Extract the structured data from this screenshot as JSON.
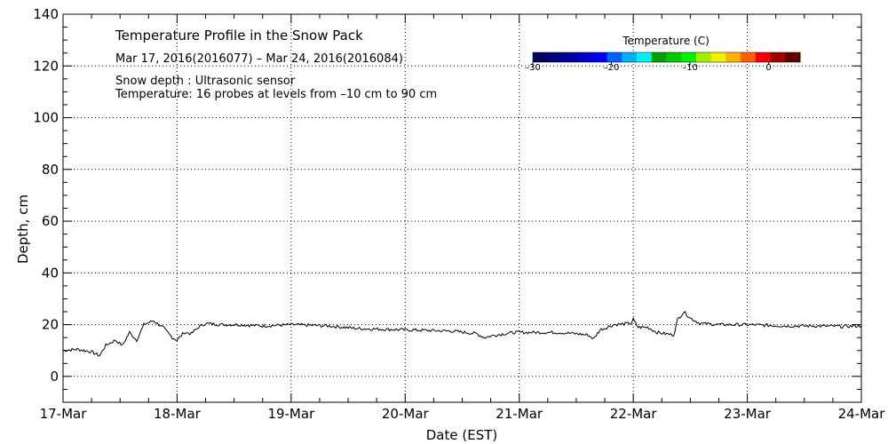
{
  "chart_data": {
    "type": "line",
    "xlabel": "Date (EST)",
    "ylabel": "Depth, cm",
    "xlim": [
      "2016-03-17",
      "2016-03-24"
    ],
    "ylim": [
      -10,
      140
    ],
    "x_ticks": [
      "17-Mar",
      "18-Mar",
      "19-Mar",
      "20-Mar",
      "21-Mar",
      "22-Mar",
      "23-Mar",
      "24-Mar"
    ],
    "y_ticks": [
      0,
      20,
      40,
      60,
      80,
      100,
      120,
      140
    ],
    "grid": true,
    "annotations": {
      "title": "Temperature Profile in the Snow Pack",
      "date_range": "Mar 17, 2016(2016077) – Mar 24, 2016(2016084)",
      "snow_depth": "Snow depth : Ultrasonic sensor",
      "temperature": "Temperature: 16 probes at levels from –10 cm to 90 cm"
    },
    "colorbar": {
      "label": "Temperature (C)",
      "ticks": [
        {
          "value": -30,
          "label": "–30"
        },
        {
          "value": -20,
          "label": "–20"
        },
        {
          "value": -10,
          "label": "–10"
        },
        {
          "value": 0,
          "label": "0"
        }
      ],
      "range": [
        -30,
        4
      ],
      "colors": [
        "#000060",
        "#000080",
        "#0000a0",
        "#0000c8",
        "#0000f0",
        "#0060ff",
        "#00b0ff",
        "#00f0ff",
        "#00a000",
        "#00c800",
        "#00f000",
        "#a0f000",
        "#f0f000",
        "#ffb000",
        "#ff6000",
        "#f00000",
        "#a00000",
        "#600000"
      ]
    },
    "series": [
      {
        "values": [
          {
            "x": "2016-03-17T00:00",
            "y": 10
          },
          {
            "x": "2016-03-17T03:00",
            "y": 10.5
          },
          {
            "x": "2016-03-17T06:00",
            "y": 9.5
          },
          {
            "x": "2016-03-17T07:40",
            "y": 8
          },
          {
            "x": "2016-03-17T09:00",
            "y": 12
          },
          {
            "x": "2016-03-17T11:00",
            "y": 14
          },
          {
            "x": "2016-03-17T12:30",
            "y": 12
          },
          {
            "x": "2016-03-17T14:00",
            "y": 17
          },
          {
            "x": "2016-03-17T15:30",
            "y": 14
          },
          {
            "x": "2016-03-17T17:00",
            "y": 20
          },
          {
            "x": "2016-03-17T19:00",
            "y": 21.5
          },
          {
            "x": "2016-03-17T21:00",
            "y": 19
          },
          {
            "x": "2016-03-17T23:00",
            "y": 15
          },
          {
            "x": "2016-03-18T00:00",
            "y": 14
          },
          {
            "x": "2016-03-18T01:30",
            "y": 17
          },
          {
            "x": "2016-03-18T03:00",
            "y": 16.5
          },
          {
            "x": "2016-03-18T04:30",
            "y": 19
          },
          {
            "x": "2016-03-18T06:00",
            "y": 20.5
          },
          {
            "x": "2016-03-18T09:00",
            "y": 20
          },
          {
            "x": "2016-03-18T13:00",
            "y": 20
          },
          {
            "x": "2016-03-18T18:00",
            "y": 19.5
          },
          {
            "x": "2016-03-19T00:00",
            "y": 20
          },
          {
            "x": "2016-03-19T08:00",
            "y": 19.5
          },
          {
            "x": "2016-03-19T14:00",
            "y": 18.5
          },
          {
            "x": "2016-03-20T00:00",
            "y": 18
          },
          {
            "x": "2016-03-20T10:00",
            "y": 17.5
          },
          {
            "x": "2016-03-20T15:00",
            "y": 16.5
          },
          {
            "x": "2016-03-20T16:40",
            "y": 15
          },
          {
            "x": "2016-03-20T19:00",
            "y": 16
          },
          {
            "x": "2016-03-20T23:00",
            "y": 17
          },
          {
            "x": "2016-03-21T08:00",
            "y": 17
          },
          {
            "x": "2016-03-21T12:00",
            "y": 16.5
          },
          {
            "x": "2016-03-21T14:30",
            "y": 16
          },
          {
            "x": "2016-03-21T15:40",
            "y": 14.5
          },
          {
            "x": "2016-03-21T17:00",
            "y": 18
          },
          {
            "x": "2016-03-21T20:00",
            "y": 20
          },
          {
            "x": "2016-03-21T23:30",
            "y": 20.5
          },
          {
            "x": "2016-03-22T00:00",
            "y": 22
          },
          {
            "x": "2016-03-22T01:00",
            "y": 19
          },
          {
            "x": "2016-03-22T03:00",
            "y": 19
          },
          {
            "x": "2016-03-22T05:00",
            "y": 17
          },
          {
            "x": "2016-03-22T08:30",
            "y": 16
          },
          {
            "x": "2016-03-22T09:20",
            "y": 22
          },
          {
            "x": "2016-03-22T10:40",
            "y": 25
          },
          {
            "x": "2016-03-22T12:00",
            "y": 22.5
          },
          {
            "x": "2016-03-22T14:00",
            "y": 20.5
          },
          {
            "x": "2016-03-22T18:00",
            "y": 20
          },
          {
            "x": "2016-03-23T00:00",
            "y": 20
          },
          {
            "x": "2016-03-23T08:00",
            "y": 19.5
          },
          {
            "x": "2016-03-23T14:00",
            "y": 19.5
          },
          {
            "x": "2016-03-23T20:00",
            "y": 19.3
          },
          {
            "x": "2016-03-24T00:00",
            "y": 19.5
          }
        ]
      }
    ]
  }
}
